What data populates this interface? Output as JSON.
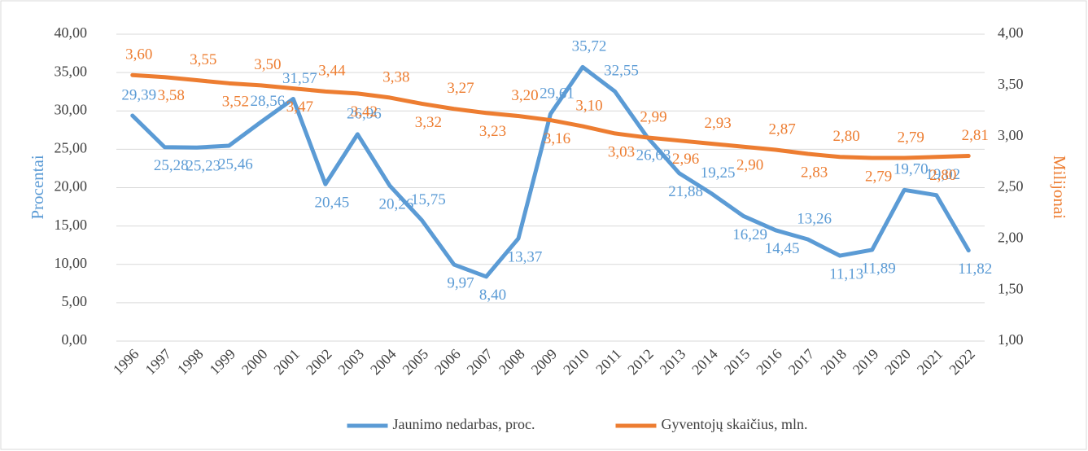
{
  "chart_data": {
    "type": "line",
    "y_label": "Procentai",
    "y2_label": "Milijonai",
    "categories": [
      "1996",
      "1997",
      "1998",
      "1999",
      "2000",
      "2001",
      "2002",
      "2003",
      "2004",
      "2005",
      "2006",
      "2007",
      "2008",
      "2009",
      "2010",
      "2011",
      "2012",
      "2013",
      "2014",
      "2015",
      "2016",
      "2017",
      "2018",
      "2019",
      "2020",
      "2021",
      "2022"
    ],
    "series": [
      {
        "name": "Jaunimo nedarbas, proc.",
        "color": "#5b9bd5",
        "axis": "y",
        "values": [
          29.39,
          25.28,
          25.23,
          25.46,
          28.56,
          31.57,
          20.45,
          26.96,
          20.26,
          15.75,
          9.97,
          8.4,
          13.37,
          29.61,
          35.72,
          32.55,
          26.63,
          21.88,
          19.25,
          16.29,
          14.45,
          13.26,
          11.13,
          11.89,
          19.7,
          19.02,
          11.82
        ],
        "value_labels": [
          "29,39",
          "25,28",
          "25,23",
          "25,46",
          "28,56",
          "31,57",
          "20,45",
          "26,96",
          "20,26",
          "15,75",
          "9,97",
          "8,40",
          "13,37",
          "29,61",
          "35,72",
          "32,55",
          "26,63",
          "21,88",
          "19,25",
          "16,29",
          "14,45",
          "13,26",
          "11,13",
          "11,89",
          "19,70",
          "19,02",
          "11,82"
        ]
      },
      {
        "name": "Gyventojų skaičius, mln.",
        "color": "#ed7d31",
        "axis": "y2",
        "values": [
          3.6,
          3.58,
          3.55,
          3.52,
          3.5,
          3.47,
          3.44,
          3.42,
          3.38,
          3.32,
          3.27,
          3.23,
          3.2,
          3.16,
          3.1,
          3.03,
          2.99,
          2.96,
          2.93,
          2.9,
          2.87,
          2.83,
          2.8,
          2.79,
          2.79,
          2.8,
          2.81
        ],
        "value_labels": [
          "3,60",
          "3,58",
          "3,55",
          "3,52",
          "3,50",
          "3,47",
          "3,44",
          "3,42",
          "3,38",
          "3,32",
          "3,27",
          "3,23",
          "3,20",
          "3,16",
          "3,10",
          "3,03",
          "2,99",
          "2,96",
          "2,93",
          "2,90",
          "2,87",
          "2,83",
          "2,80",
          "2,79",
          "2,79",
          "2,80",
          "2,81"
        ]
      }
    ],
    "ylim": [
      0,
      40
    ],
    "yticks": [
      {
        "value": 0,
        "label": "0,00"
      },
      {
        "value": 5,
        "label": "5,00"
      },
      {
        "value": 10,
        "label": "10,00"
      },
      {
        "value": 15,
        "label": "15,00"
      },
      {
        "value": 20,
        "label": "20,00"
      },
      {
        "value": 25,
        "label": "25,00"
      },
      {
        "value": 30,
        "label": "30,00"
      },
      {
        "value": 35,
        "label": "35,00"
      },
      {
        "value": 40,
        "label": "40,00"
      }
    ],
    "y2lim": [
      1,
      4
    ],
    "y2ticks": [
      {
        "value": 1,
        "label": "1,00"
      },
      {
        "value": 1.5,
        "label": "1,50"
      },
      {
        "value": 2,
        "label": "2,00"
      },
      {
        "value": 2.5,
        "label": "2,50"
      },
      {
        "value": 3,
        "label": "3,00"
      },
      {
        "value": 3.5,
        "label": "3,50"
      },
      {
        "value": 4,
        "label": "4,00"
      }
    ],
    "grid": true,
    "legend": "bottom"
  }
}
